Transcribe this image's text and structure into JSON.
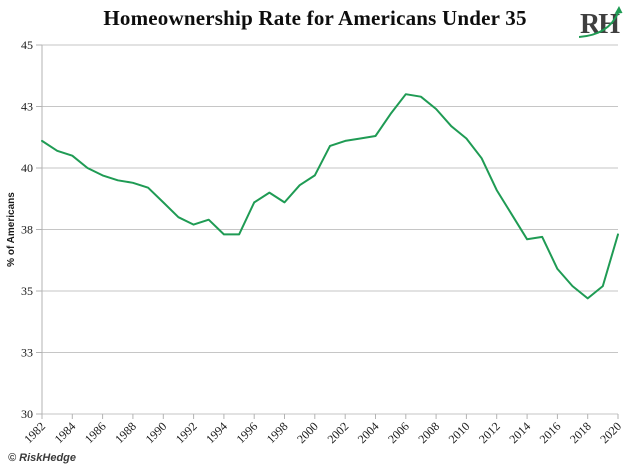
{
  "title": "Homeownership Rate for Americans Under 35",
  "logo": {
    "text": "RH"
  },
  "footer": {
    "credit": "© RiskHedge"
  },
  "colors": {
    "line": "#1f9b54",
    "grid": "#c6c6c6",
    "axis": "#b3b3b3",
    "title_text": "#0d0d0d",
    "logo_text": "#3f3f3f",
    "logo_arrow": "#1f9b54"
  },
  "chart_data": {
    "type": "line",
    "title": "Homeownership Rate for Americans Under 35",
    "xlabel": "",
    "ylabel": "% of Americans",
    "xlim": [
      1982,
      2020
    ],
    "ylim": [
      30,
      45
    ],
    "grid": true,
    "legend_position": "none",
    "x": [
      1982,
      1983,
      1984,
      1985,
      1986,
      1987,
      1988,
      1989,
      1990,
      1991,
      1992,
      1993,
      1994,
      1995,
      1996,
      1997,
      1998,
      1999,
      2000,
      2001,
      2002,
      2003,
      2004,
      2005,
      2006,
      2007,
      2008,
      2009,
      2010,
      2011,
      2012,
      2013,
      2014,
      2015,
      2016,
      2017,
      2018,
      2019,
      2020
    ],
    "values": [
      41.1,
      40.7,
      40.5,
      40.0,
      39.7,
      39.5,
      39.4,
      39.2,
      38.6,
      38.0,
      37.7,
      37.9,
      37.3,
      37.3,
      38.6,
      39.0,
      38.6,
      39.3,
      39.7,
      40.9,
      41.1,
      41.2,
      41.3,
      42.2,
      43.0,
      42.9,
      42.4,
      41.7,
      41.2,
      40.4,
      39.1,
      38.1,
      37.1,
      37.2,
      35.9,
      35.2,
      34.7,
      35.2,
      37.3
    ],
    "yticks": [
      {
        "value": 45,
        "label": "45"
      },
      {
        "value": 42.5,
        "label": "43"
      },
      {
        "value": 40,
        "label": "40"
      },
      {
        "value": 37.5,
        "label": "38"
      },
      {
        "value": 35,
        "label": "35"
      },
      {
        "value": 32.5,
        "label": "33"
      },
      {
        "value": 30,
        "label": "30"
      }
    ],
    "xticks": [
      1982,
      1984,
      1986,
      1988,
      1990,
      1992,
      1994,
      1996,
      1998,
      2000,
      2002,
      2004,
      2006,
      2008,
      2010,
      2012,
      2014,
      2016,
      2018,
      2020
    ]
  }
}
